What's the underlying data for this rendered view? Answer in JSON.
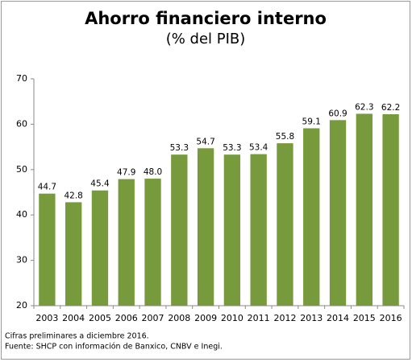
{
  "chart_data": {
    "type": "bar",
    "title": "Ahorro financiero interno",
    "subtitle": "(% del PIB)",
    "categories": [
      "2003",
      "2004",
      "2005",
      "2006",
      "2007",
      "2008",
      "2009",
      "2010",
      "2011",
      "2012",
      "2013",
      "2014",
      "2015",
      "2016"
    ],
    "values": [
      44.7,
      42.8,
      45.4,
      47.9,
      48.0,
      53.3,
      54.7,
      53.3,
      53.4,
      55.8,
      59.1,
      60.9,
      62.3,
      62.2
    ],
    "value_labels": [
      "44.7",
      "42.8",
      "45.4",
      "47.9",
      "48.0",
      "53.3",
      "54.7",
      "53.3",
      "53.4",
      "55.8",
      "59.1",
      "60.9",
      "62.3",
      "62.2"
    ],
    "color": "#779a3c",
    "ylim": [
      20,
      70
    ],
    "yticks": [
      20,
      30,
      40,
      50,
      60,
      70
    ],
    "grid": false,
    "notes": [
      "Cifras preliminares a diciembre 2016.",
      "Fuente: SHCP con información de Banxico, CNBV e Inegi."
    ]
  }
}
